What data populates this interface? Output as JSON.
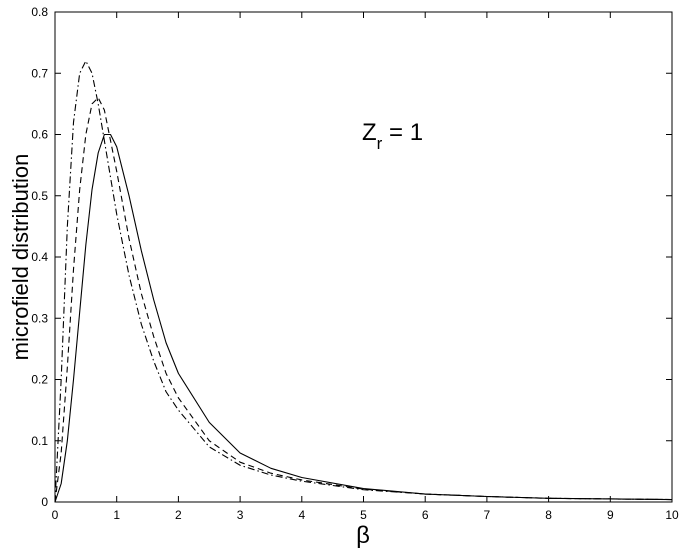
{
  "chart_data": {
    "type": "line",
    "xlabel": "β",
    "ylabel": "microfield distribution",
    "annotation": {
      "main": "Z",
      "subscript": "r",
      "rest": " = 1"
    },
    "x": [
      0,
      0.1,
      0.2,
      0.3,
      0.4,
      0.5,
      0.6,
      0.7,
      0.8,
      0.9,
      1.0,
      1.2,
      1.4,
      1.6,
      1.8,
      2.0,
      2.5,
      3,
      3.5,
      4,
      5,
      6,
      7,
      8,
      9,
      10
    ],
    "series": [
      {
        "color": "#000000",
        "linestyle": "solid",
        "values": [
          0,
          0.03,
          0.1,
          0.2,
          0.31,
          0.42,
          0.51,
          0.57,
          0.6,
          0.6,
          0.58,
          0.5,
          0.41,
          0.33,
          0.26,
          0.21,
          0.13,
          0.08,
          0.055,
          0.04,
          0.022,
          0.013,
          0.009,
          0.006,
          0.005,
          0.004
        ]
      },
      {
        "color": "#000000",
        "linestyle": "dashed",
        "values": [
          0,
          0.08,
          0.22,
          0.38,
          0.51,
          0.6,
          0.65,
          0.66,
          0.64,
          0.59,
          0.54,
          0.43,
          0.34,
          0.27,
          0.21,
          0.17,
          0.1,
          0.065,
          0.047,
          0.036,
          0.021,
          0.013,
          0.009,
          0.006,
          0.005,
          0.004
        ]
      },
      {
        "color": "#000000",
        "linestyle": "dashdot",
        "values": [
          0,
          0.2,
          0.45,
          0.62,
          0.7,
          0.72,
          0.7,
          0.65,
          0.59,
          0.53,
          0.47,
          0.37,
          0.29,
          0.23,
          0.18,
          0.15,
          0.09,
          0.06,
          0.044,
          0.034,
          0.02,
          0.013,
          0.009,
          0.006,
          0.005,
          0.004
        ]
      }
    ],
    "xlim": [
      0,
      10
    ],
    "xticks": [
      0,
      1,
      2,
      3,
      4,
      5,
      6,
      7,
      8,
      9,
      10
    ],
    "ylim": [
      0,
      0.8
    ],
    "yticks": [
      0,
      0.1,
      0.2,
      0.3,
      0.4,
      0.5,
      0.6,
      0.7,
      0.8
    ],
    "grid": false
  }
}
